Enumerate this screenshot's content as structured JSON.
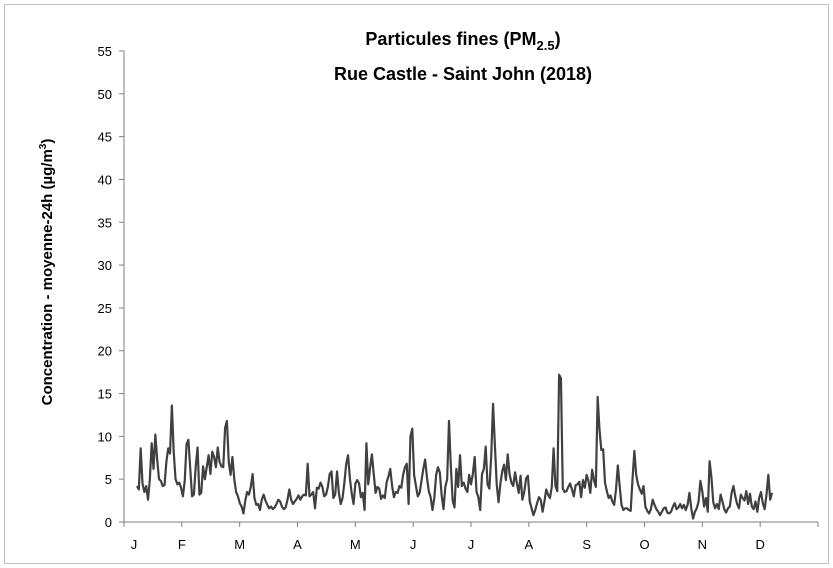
{
  "chart_data": {
    "type": "line",
    "title_main": "Particules fines (PM",
    "title_sub": "2.5",
    "title_close": ")",
    "title_line2": "Rue Castle - Saint John (2018)",
    "ylabel_main": "Concentration - moyenne-24h (µg/m",
    "ylabel_sup": "3",
    "ylabel_close": ")",
    "ylim": [
      0,
      55
    ],
    "y_ticks": [
      "0",
      "5",
      "10",
      "15",
      "20",
      "25",
      "30",
      "35",
      "40",
      "45",
      "50",
      "55"
    ],
    "x_ticks": [
      "J",
      "F",
      "M",
      "A",
      "M",
      "J",
      "J",
      "A",
      "S",
      "O",
      "N",
      "D"
    ],
    "grid": false,
    "legend": "none",
    "line_color": "#404040",
    "series": [
      {
        "values": [
          4.2,
          3.8,
          8.6,
          4.5,
          3.5,
          4.2,
          2.6,
          5.0,
          9.2,
          6.2,
          10.2,
          7.3,
          5.0,
          4.8,
          4.2,
          4.3,
          7.0,
          8.6,
          8.0,
          13.6,
          8.2,
          5.0,
          4.4,
          4.6,
          4.0,
          3.0,
          4.8,
          9.1,
          9.6,
          6.3,
          3.0,
          3.2,
          6.5,
          8.7,
          3.2,
          3.4,
          6.5,
          5.0,
          6.4,
          7.8,
          5.6,
          8.2,
          7.6,
          6.4,
          8.7,
          7.0,
          6.5,
          6.4,
          11.0,
          11.8,
          7.0,
          5.5,
          7.6,
          5.0,
          3.5,
          3.0,
          2.2,
          1.8,
          1.0,
          2.5,
          3.5,
          3.2,
          4.1,
          5.6,
          2.8,
          2.0,
          2.1,
          1.4,
          2.6,
          3.2,
          2.5,
          2.0,
          1.6,
          1.8,
          1.5,
          1.7,
          2.1,
          2.6,
          2.4,
          1.8,
          1.5,
          1.7,
          2.6,
          3.8,
          2.6,
          2.1,
          2.4,
          2.7,
          3.1,
          2.6,
          3.0,
          3.2,
          3.1,
          6.8,
          3.0,
          3.2,
          3.5,
          1.6,
          4.0,
          3.9,
          4.6,
          4.1,
          3.0,
          3.2,
          4.1,
          5.6,
          5.9,
          2.8,
          3.2,
          5.9,
          3.4,
          2.1,
          2.8,
          4.6,
          6.8,
          7.8,
          5.1,
          3.3,
          2.1,
          4.5,
          4.9,
          4.5,
          2.9,
          3.4,
          1.4,
          9.2,
          4.4,
          6.3,
          7.9,
          5.6,
          3.4,
          4.1,
          3.9,
          2.7,
          3.1,
          2.8,
          4.6,
          5.3,
          6.2,
          4.2,
          2.9,
          3.5,
          3.4,
          4.2,
          4.0,
          5.5,
          6.4,
          6.8,
          2.1,
          10.0,
          10.9,
          5.5,
          4.2,
          3.0,
          3.4,
          4.8,
          6.2,
          7.3,
          5.2,
          3.6,
          2.9,
          1.4,
          2.8,
          5.5,
          6.4,
          5.8,
          3.1,
          1.5,
          4.1,
          5.0,
          11.8,
          6.5,
          2.5,
          1.7,
          6.2,
          4.1,
          7.8,
          4.2,
          4.6,
          3.9,
          3.5,
          5.5,
          4.4,
          5.6,
          7.6,
          3.5,
          2.9,
          1.4,
          5.6,
          6.2,
          8.8,
          4.4,
          3.9,
          7.7,
          13.8,
          9.0,
          4.4,
          2.3,
          4.5,
          5.9,
          6.7,
          4.9,
          7.9,
          5.6,
          4.6,
          4.2,
          5.8,
          4.5,
          3.4,
          5.4,
          2.6,
          3.5,
          5.1,
          5.4,
          2.4,
          1.6,
          0.8,
          1.4,
          2.2,
          2.9,
          2.6,
          1.2,
          2.4,
          3.8,
          3.2,
          2.8,
          4.1,
          8.6,
          4.2,
          3.6,
          17.2,
          16.8,
          3.9,
          3.5,
          3.6,
          4.1,
          4.5,
          3.8,
          3.0,
          4.3,
          4.4,
          4.7,
          2.9,
          4.9,
          4.0,
          5.5,
          4.8,
          3.4,
          6.1,
          4.9,
          4.1,
          14.6,
          10.8,
          8.4,
          8.5,
          4.6,
          3.6,
          2.8,
          3.1,
          2.4,
          2.0,
          3.8,
          6.6,
          4.2,
          2.0,
          1.4,
          1.6,
          1.6,
          1.4,
          1.3,
          5.0,
          8.3,
          5.5,
          4.4,
          3.8,
          3.3,
          4.2,
          1.8,
          1.3,
          1.0,
          1.5,
          2.6,
          2.0,
          1.5,
          1.2,
          0.8,
          1.2,
          1.6,
          1.7,
          1.1,
          1.0,
          1.2,
          1.8,
          2.2,
          1.5,
          1.7,
          2.1,
          1.6,
          2.0,
          1.4,
          2.0,
          3.4,
          1.6,
          0.4,
          1.2,
          1.6,
          2.4,
          4.8,
          3.6,
          1.8,
          2.8,
          1.2,
          7.1,
          5.2,
          2.3,
          1.6,
          2.1,
          1.5,
          3.2,
          2.4,
          1.5,
          1.1,
          1.6,
          1.8,
          3.4,
          4.2,
          3.0,
          2.1,
          1.6,
          3.2,
          2.8,
          2.5,
          3.6,
          2.1,
          3.3,
          1.8,
          1.5,
          2.4,
          1.2,
          2.8,
          3.5,
          2.2,
          1.5,
          3.2,
          5.5,
          2.6,
          3.4
        ]
      }
    ]
  }
}
